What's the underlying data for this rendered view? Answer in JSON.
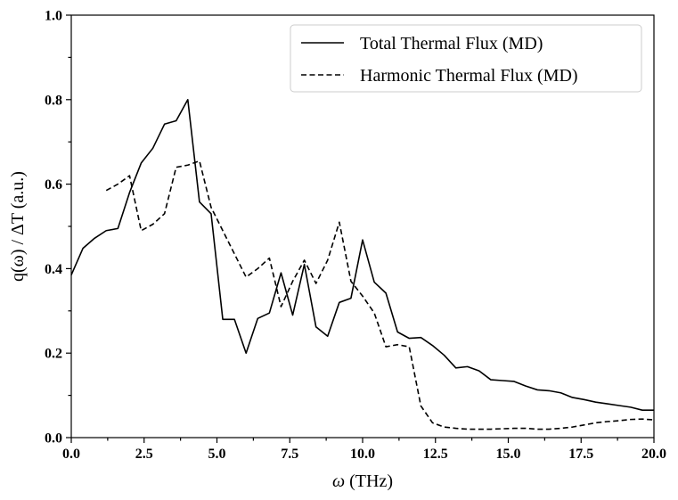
{
  "chart_data": {
    "type": "line",
    "xlabel_symbol": "ω",
    "xlabel_unit": " (THz)",
    "ylabel": "q(ω) / ΔT (a.u.)",
    "xlim": [
      0,
      20
    ],
    "ylim": [
      0,
      1.0
    ],
    "xticks": [
      0,
      2.5,
      5,
      7.5,
      10,
      12.5,
      15,
      17.5,
      20
    ],
    "xtick_labels": [
      "0.0",
      "2.5",
      "5.0",
      "7.5",
      "10.0",
      "12.5",
      "15.0",
      "17.5",
      "20.0"
    ],
    "yticks": [
      0,
      0.2,
      0.4,
      0.6,
      0.8,
      1.0
    ],
    "ytick_labels": [
      "0.0",
      "0.2",
      "0.4",
      "0.6",
      "0.8",
      "1.0"
    ],
    "grid": false,
    "legend_position": "top-right",
    "series": [
      {
        "name": "Total Thermal Flux (MD)",
        "style": "solid",
        "color": "#000000",
        "x": [
          0,
          0.4,
          0.8,
          1.2,
          1.6,
          2.0,
          2.4,
          2.8,
          3.2,
          3.6,
          4.0,
          4.4,
          4.8,
          5.2,
          5.6,
          6.0,
          6.4,
          6.8,
          7.2,
          7.6,
          8.0,
          8.4,
          8.8,
          9.2,
          9.6,
          10.0,
          10.4,
          10.8,
          11.2,
          11.6,
          12.0,
          12.4,
          12.8,
          13.2,
          13.6,
          14.0,
          14.4,
          14.8,
          15.2,
          15.6,
          16.0,
          16.4,
          16.8,
          17.2,
          17.6,
          18.0,
          18.4,
          18.8,
          19.2,
          19.6,
          20.0
        ],
        "y": [
          0.385,
          0.448,
          0.472,
          0.49,
          0.495,
          0.58,
          0.65,
          0.685,
          0.742,
          0.75,
          0.8,
          0.558,
          0.53,
          0.28,
          0.28,
          0.2,
          0.282,
          0.295,
          0.39,
          0.29,
          0.41,
          0.262,
          0.24,
          0.32,
          0.33,
          0.468,
          0.368,
          0.342,
          0.25,
          0.235,
          0.237,
          0.218,
          0.195,
          0.165,
          0.168,
          0.158,
          0.137,
          0.135,
          0.133,
          0.122,
          0.113,
          0.111,
          0.106,
          0.095,
          0.09,
          0.084,
          0.08,
          0.076,
          0.072,
          0.065,
          0.065
        ]
      },
      {
        "name": "Harmonic Thermal Flux (MD)",
        "style": "dashed",
        "color": "#000000",
        "x": [
          1.2,
          1.6,
          2.0,
          2.4,
          2.8,
          3.2,
          3.6,
          4.0,
          4.4,
          4.8,
          5.2,
          5.6,
          6.0,
          6.4,
          6.8,
          7.2,
          7.6,
          8.0,
          8.4,
          8.8,
          9.2,
          9.6,
          10.0,
          10.4,
          10.8,
          11.2,
          11.6,
          12.0,
          12.4,
          12.8,
          13.2,
          13.6,
          14.0,
          14.4,
          14.8,
          15.2,
          15.6,
          16.0,
          16.4,
          16.8,
          17.2,
          17.6,
          18.0,
          18.4,
          18.8,
          19.2,
          19.6,
          20.0
        ],
        "y": [
          0.585,
          0.6,
          0.62,
          0.49,
          0.505,
          0.53,
          0.64,
          0.645,
          0.655,
          0.545,
          0.49,
          0.435,
          0.38,
          0.4,
          0.425,
          0.31,
          0.37,
          0.42,
          0.365,
          0.42,
          0.51,
          0.37,
          0.335,
          0.295,
          0.215,
          0.22,
          0.215,
          0.075,
          0.035,
          0.025,
          0.022,
          0.02,
          0.02,
          0.02,
          0.021,
          0.022,
          0.022,
          0.02,
          0.02,
          0.022,
          0.025,
          0.03,
          0.035,
          0.038,
          0.04,
          0.043,
          0.044,
          0.042
        ]
      }
    ]
  }
}
